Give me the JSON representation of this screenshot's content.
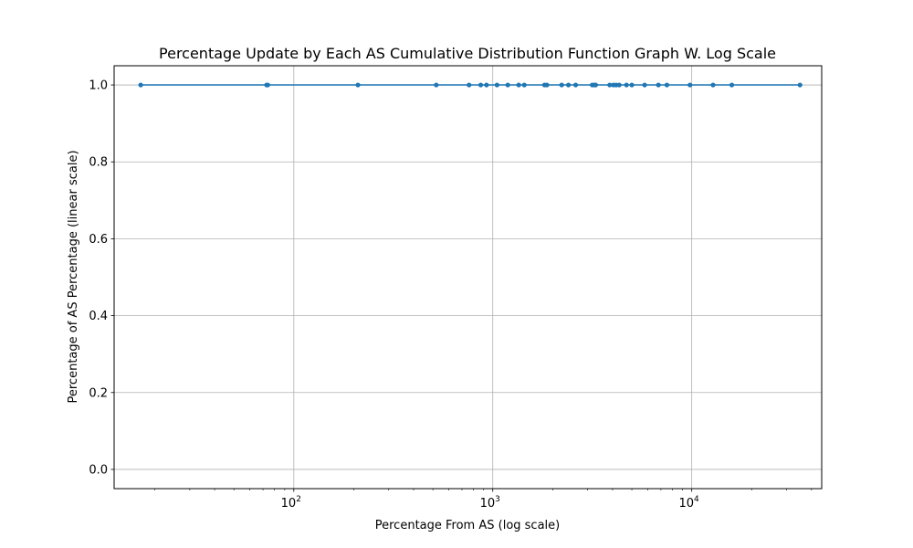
{
  "chart_data": {
    "type": "line",
    "title": "Percentage Update by Each AS Cumulative Distribution Function Graph W. Log Scale",
    "xlabel": "Percentage From AS (log scale)",
    "ylabel": "Percentage of AS Percentage (linear scale)",
    "xscale": "log",
    "xlim": [
      12.5,
      45000
    ],
    "ylim": [
      -0.05,
      1.05
    ],
    "x_ticks": [
      {
        "value": 100,
        "base": "10",
        "exp": "2"
      },
      {
        "value": 1000,
        "base": "10",
        "exp": "3"
      },
      {
        "value": 10000,
        "base": "10",
        "exp": "4"
      }
    ],
    "y_ticks": [
      {
        "value": 0.0,
        "label": "0.0"
      },
      {
        "value": 0.2,
        "label": "0.2"
      },
      {
        "value": 0.4,
        "label": "0.4"
      },
      {
        "value": 0.6,
        "label": "0.6"
      },
      {
        "value": 0.8,
        "label": "0.8"
      },
      {
        "value": 1.0,
        "label": "1.0"
      }
    ],
    "grid": true,
    "color": "#1f77b4",
    "series": [
      {
        "x": [
          17,
          73,
          74,
          210,
          520,
          760,
          870,
          930,
          1050,
          1190,
          1350,
          1440,
          1820,
          1870,
          2220,
          2400,
          2610,
          3160,
          3240,
          3290,
          3870,
          4040,
          4170,
          4320,
          4700,
          5000,
          5800,
          6800,
          7500,
          9800,
          12800,
          15900,
          35000
        ],
        "y": [
          1,
          1,
          1,
          1,
          1,
          1,
          1,
          1,
          1,
          1,
          1,
          1,
          1,
          1,
          1,
          1,
          1,
          1,
          1,
          1,
          1,
          1,
          1,
          1,
          1,
          1,
          1,
          1,
          1,
          1,
          1,
          1,
          1
        ]
      }
    ]
  }
}
